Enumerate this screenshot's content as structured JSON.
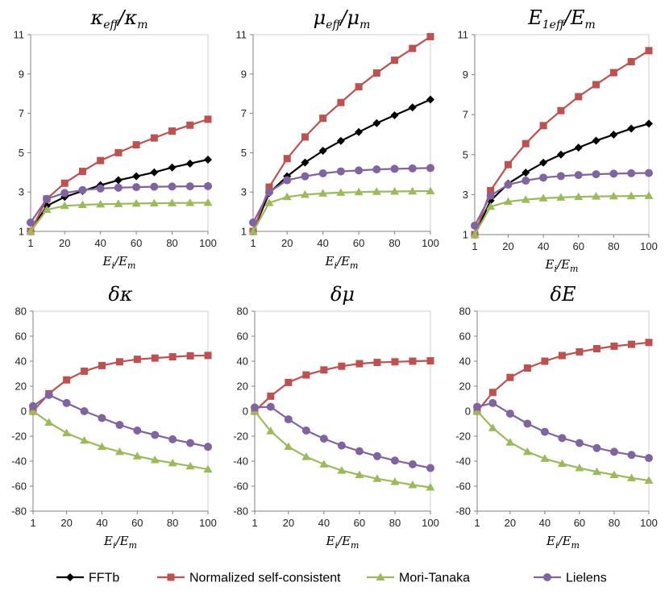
{
  "chart_data": [
    {
      "type": "line",
      "title": {
        "main": "κ",
        "sub": "eff",
        "sep": "/κ",
        "sub2": "m"
      },
      "xlabel": {
        "main": "E",
        "sub": "i",
        "sep": "/E",
        "sub2": "m"
      },
      "x": [
        1,
        10,
        20,
        30,
        40,
        50,
        60,
        70,
        80,
        90,
        100
      ],
      "xticks": [
        1,
        20,
        40,
        60,
        80,
        100
      ],
      "xlim": [
        1,
        100
      ],
      "ylim": [
        1,
        11
      ],
      "yticks": [
        1,
        3,
        5,
        7,
        9,
        11
      ],
      "series": [
        {
          "name": "FFTb",
          "values": [
            1.0,
            2.3,
            2.75,
            3.05,
            3.35,
            3.6,
            3.8,
            4.0,
            4.25,
            4.45,
            4.65
          ]
        },
        {
          "name": "Normalized self-consistent",
          "values": [
            1.0,
            2.65,
            3.45,
            4.05,
            4.6,
            5.0,
            5.4,
            5.75,
            6.1,
            6.4,
            6.7
          ]
        },
        {
          "name": "Mori-Tanaka",
          "values": [
            1.0,
            2.1,
            2.3,
            2.35,
            2.38,
            2.4,
            2.42,
            2.43,
            2.44,
            2.45,
            2.46
          ]
        },
        {
          "name": "Lielens",
          "values": [
            1.45,
            2.65,
            2.95,
            3.1,
            3.18,
            3.22,
            3.25,
            3.27,
            3.28,
            3.29,
            3.3
          ]
        }
      ]
    },
    {
      "type": "line",
      "title": {
        "main": "μ",
        "sub": "eff",
        "sep": "/μ",
        "sub2": "m"
      },
      "xlabel": {
        "main": "E",
        "sub": "i",
        "sep": "/E",
        "sub2": "m"
      },
      "x": [
        1,
        10,
        20,
        30,
        40,
        50,
        60,
        70,
        80,
        90,
        100
      ],
      "xticks": [
        1,
        20,
        40,
        60,
        80,
        100
      ],
      "xlim": [
        1,
        100
      ],
      "ylim": [
        1,
        11
      ],
      "yticks": [
        1,
        3,
        5,
        7,
        9,
        11
      ],
      "series": [
        {
          "name": "FFTb",
          "values": [
            1.0,
            2.95,
            3.8,
            4.5,
            5.1,
            5.6,
            6.05,
            6.5,
            6.9,
            7.3,
            7.7
          ]
        },
        {
          "name": "Normalized self-consistent",
          "values": [
            1.0,
            3.25,
            4.7,
            5.8,
            6.75,
            7.55,
            8.35,
            9.05,
            9.7,
            10.3,
            10.9
          ]
        },
        {
          "name": "Mori-Tanaka",
          "values": [
            1.0,
            2.45,
            2.75,
            2.87,
            2.93,
            2.97,
            3.0,
            3.02,
            3.03,
            3.04,
            3.05
          ]
        },
        {
          "name": "Lielens",
          "values": [
            1.45,
            3.0,
            3.6,
            3.8,
            3.95,
            4.05,
            4.1,
            4.15,
            4.18,
            4.2,
            4.22
          ]
        }
      ]
    },
    {
      "type": "line",
      "title": {
        "main": "E",
        "sub": "1eff",
        "sep": "/E",
        "sub2": "m"
      },
      "xlabel": {
        "main": "E",
        "sub": "i",
        "sep": "/E",
        "sub2": "m"
      },
      "x": [
        1,
        10,
        20,
        30,
        40,
        50,
        60,
        70,
        80,
        90,
        100
      ],
      "xticks": [
        1,
        20,
        40,
        60,
        80,
        100
      ],
      "xlim": [
        1,
        100
      ],
      "ylim": [
        1,
        11
      ],
      "yticks": [
        1,
        3,
        5,
        7,
        9,
        11
      ],
      "series": [
        {
          "name": "FFTb",
          "values": [
            1.0,
            2.7,
            3.55,
            4.1,
            4.6,
            5.0,
            5.35,
            5.7,
            6.0,
            6.3,
            6.55
          ]
        },
        {
          "name": "Normalized self-consistent",
          "values": [
            1.0,
            3.2,
            4.5,
            5.55,
            6.45,
            7.2,
            7.9,
            8.5,
            9.1,
            9.65,
            10.2
          ]
        },
        {
          "name": "Mori-Tanaka",
          "values": [
            1.0,
            2.4,
            2.65,
            2.75,
            2.82,
            2.86,
            2.89,
            2.91,
            2.92,
            2.93,
            2.94
          ]
        },
        {
          "name": "Lielens",
          "values": [
            1.45,
            2.95,
            3.5,
            3.7,
            3.85,
            3.93,
            3.98,
            4.02,
            4.05,
            4.07,
            4.08
          ]
        }
      ]
    },
    {
      "type": "line",
      "title": {
        "main": "δκ",
        "sub": "",
        "sep": "",
        "sub2": ""
      },
      "xlabel": {
        "main": "E",
        "sub": "i",
        "sep": "/E",
        "sub2": "m"
      },
      "x": [
        1,
        10,
        20,
        30,
        40,
        50,
        60,
        70,
        80,
        90,
        100
      ],
      "xticks": [
        1,
        20,
        40,
        60,
        80,
        100
      ],
      "xlim": [
        1,
        100
      ],
      "ylim": [
        -80,
        80
      ],
      "yticks": [
        -80,
        -60,
        -40,
        -20,
        0,
        20,
        40,
        60,
        80
      ],
      "series": [
        {
          "name": "Normalized self-consistent",
          "values": [
            0,
            14,
            25,
            32,
            36.5,
            39.5,
            41.5,
            42.5,
            43.5,
            44.3,
            44.6
          ]
        },
        {
          "name": "Mori-Tanaka",
          "values": [
            0,
            -9,
            -17.5,
            -23.5,
            -28.5,
            -32.5,
            -36,
            -39,
            -41.5,
            -44,
            -46.5
          ]
        },
        {
          "name": "Lielens",
          "values": [
            4,
            13,
            6.5,
            0,
            -5.5,
            -11,
            -15.5,
            -19,
            -22.5,
            -25.5,
            -28.5
          ]
        }
      ]
    },
    {
      "type": "line",
      "title": {
        "main": "δμ",
        "sub": "",
        "sep": "",
        "sub2": ""
      },
      "xlabel": {
        "main": "E",
        "sub": "i",
        "sep": "/E",
        "sub2": "m"
      },
      "x": [
        1,
        10,
        20,
        30,
        40,
        50,
        60,
        70,
        80,
        90,
        100
      ],
      "xticks": [
        1,
        20,
        40,
        60,
        80,
        100
      ],
      "xlim": [
        1,
        100
      ],
      "ylim": [
        -80,
        80
      ],
      "yticks": [
        -80,
        -60,
        -40,
        -20,
        0,
        20,
        40,
        60,
        80
      ],
      "series": [
        {
          "name": "Normalized self-consistent",
          "values": [
            0,
            12,
            23,
            29,
            33,
            36,
            38,
            39,
            39.5,
            40,
            40.3
          ]
        },
        {
          "name": "Mori-Tanaka",
          "values": [
            0,
            -16,
            -28.5,
            -36.5,
            -42.5,
            -47.5,
            -51,
            -54,
            -56.5,
            -59,
            -61
          ]
        },
        {
          "name": "Lielens",
          "values": [
            3,
            3.5,
            -6.5,
            -15.5,
            -22,
            -27.5,
            -32,
            -36,
            -39.5,
            -42.5,
            -45.5
          ]
        }
      ]
    },
    {
      "type": "line",
      "title": {
        "main": "δE",
        "sub": "",
        "sep": "",
        "sub2": ""
      },
      "xlabel": {
        "main": "E",
        "sub": "i",
        "sep": "/E",
        "sub2": "m"
      },
      "x": [
        1,
        10,
        20,
        30,
        40,
        50,
        60,
        70,
        80,
        90,
        100
      ],
      "xticks": [
        1,
        20,
        40,
        60,
        80,
        100
      ],
      "xlim": [
        1,
        100
      ],
      "ylim": [
        -80,
        80
      ],
      "yticks": [
        -80,
        -60,
        -40,
        -20,
        0,
        20,
        40,
        60,
        80
      ],
      "series": [
        {
          "name": "Normalized self-consistent",
          "values": [
            0,
            15,
            27,
            34.5,
            40,
            44.5,
            47.5,
            50,
            52,
            53.5,
            55
          ]
        },
        {
          "name": "Mori-Tanaka",
          "values": [
            0,
            -13.5,
            -25,
            -32.5,
            -38,
            -42,
            -45.5,
            -48.5,
            -51,
            -53.5,
            -55.5
          ]
        },
        {
          "name": "Lielens",
          "values": [
            3.5,
            6.5,
            -2,
            -10,
            -16.5,
            -21.5,
            -25.5,
            -29.5,
            -32.5,
            -35,
            -37.5
          ]
        }
      ]
    }
  ],
  "legend": {
    "position": "bottom",
    "items": [
      {
        "name": "FFTb",
        "marker": "diamond",
        "color": "#000000"
      },
      {
        "name": "Normalized self-consistent",
        "marker": "square",
        "color": "#c0504d"
      },
      {
        "name": "Mori-Tanaka",
        "marker": "triangle",
        "color": "#9bbb59"
      },
      {
        "name": "Lielens",
        "marker": "circle",
        "color": "#8064a2"
      }
    ]
  },
  "series_styles": {
    "FFTb": {
      "color": "#000000",
      "fill": "#000000",
      "marker": "diamond"
    },
    "Normalized self-consistent": {
      "color": "#c0504d",
      "fill": "#c0504d",
      "marker": "square"
    },
    "Mori-Tanaka": {
      "color": "#9bbb59",
      "fill": "#9bbb59",
      "marker": "triangle"
    },
    "Lielens": {
      "color": "#8064a2",
      "fill": "#8064a2",
      "marker": "circle"
    }
  }
}
